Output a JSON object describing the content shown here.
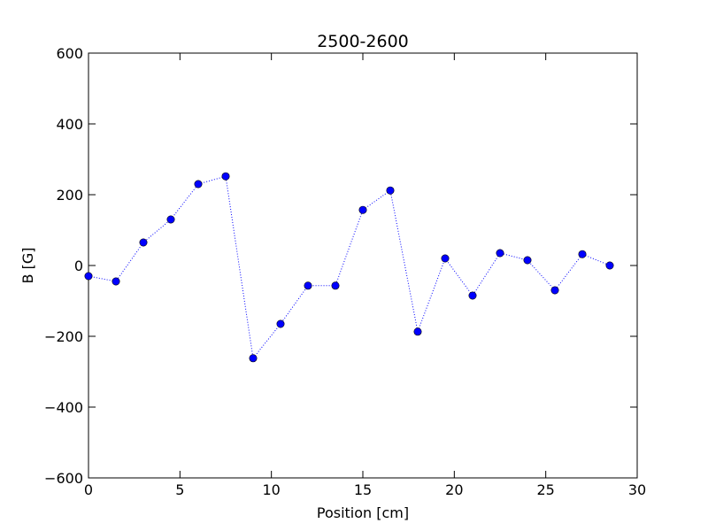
{
  "chart_data": {
    "type": "line",
    "title": "2500-2600",
    "xlabel": "Position [cm]",
    "ylabel": "B [G]",
    "xlim": [
      0,
      30
    ],
    "ylim": [
      -600,
      600
    ],
    "xticks": [
      0,
      5,
      10,
      15,
      20,
      25,
      30
    ],
    "yticks": [
      -600,
      -400,
      -200,
      0,
      200,
      400,
      600
    ],
    "xtick_labels": [
      "0",
      "5",
      "10",
      "15",
      "20",
      "25",
      "30"
    ],
    "ytick_labels": [
      "−600",
      "−400",
      "−200",
      "0",
      "200",
      "400",
      "600"
    ],
    "grid": false,
    "line_style": "dotted",
    "marker": "circle",
    "series": [
      {
        "color": "#0000ff",
        "x": [
          0,
          1.5,
          3,
          4.5,
          6,
          7.5,
          9,
          10.5,
          12,
          13.5,
          15,
          16.5,
          18,
          19.5,
          21,
          22.5,
          24,
          25.5,
          27,
          28.5
        ],
        "y": [
          -30,
          -45,
          65,
          130,
          230,
          252,
          -262,
          -165,
          -57,
          -57,
          157,
          212,
          -187,
          20,
          -85,
          35,
          15,
          -70,
          32,
          0
        ]
      }
    ]
  }
}
